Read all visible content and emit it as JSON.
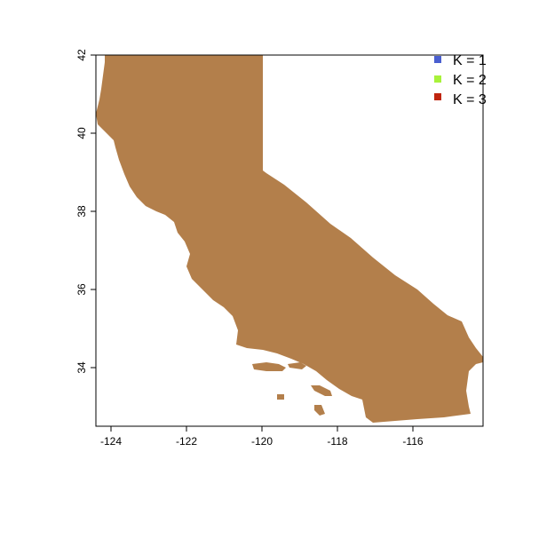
{
  "map": {
    "land_color": "#b37f4b",
    "frame_color": "#000000",
    "x_ticks": [
      "-124",
      "-122",
      "-120",
      "-118",
      "-116"
    ],
    "y_ticks": [
      "34",
      "36",
      "38",
      "40",
      "42"
    ]
  },
  "legend": {
    "placement": "top-right",
    "items": [
      {
        "label": "K = 1",
        "color": "#4a5fd0"
      },
      {
        "label": "K = 2",
        "color": "#a8f23a"
      },
      {
        "label": "K = 3",
        "color": "#c0250f"
      }
    ]
  },
  "chart_data": {
    "type": "map",
    "title": "",
    "xlabel": "",
    "ylabel": "",
    "xlim": [
      -124.4,
      -114.2
    ],
    "ylim": [
      32.5,
      42
    ],
    "x_ticks": [
      -124,
      -122,
      -120,
      -118,
      -116
    ],
    "y_ticks": [
      34,
      36,
      38,
      40,
      42
    ],
    "region": "California",
    "series": [
      {
        "name": "K = 1",
        "color": "#4a5fd0"
      },
      {
        "name": "K = 2",
        "color": "#a8f23a"
      },
      {
        "name": "K = 3",
        "color": "#c0250f"
      }
    ]
  }
}
